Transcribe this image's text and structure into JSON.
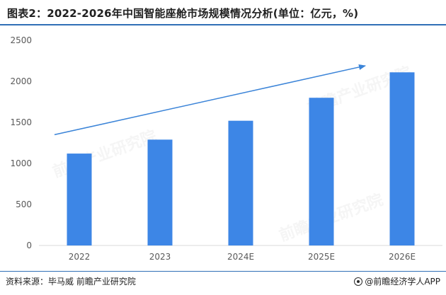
{
  "title": "图表2：2022-2026年中国智能座舱市场规模情况分析(单位：亿元，%)",
  "source": "资料来源：毕马威 前瞻产业研究院",
  "brand": "@前瞻经济学人APP",
  "watermark": "前瞻产业研究院",
  "colors": {
    "bar": "#3d86e6",
    "trend": "#3b84d8",
    "axis": "#d9d9d9",
    "tick_text": "#595959"
  },
  "chart_data": {
    "type": "bar",
    "categories": [
      "2022",
      "2023",
      "2024E",
      "2025E",
      "2026E"
    ],
    "values": [
      1120,
      1290,
      1520,
      1800,
      2110
    ],
    "ylim": [
      0,
      2500
    ],
    "yticks": [
      0,
      500,
      1000,
      1500,
      2000,
      2500
    ],
    "grid": false,
    "legend": "none",
    "annotation": "upward trend arrow"
  }
}
